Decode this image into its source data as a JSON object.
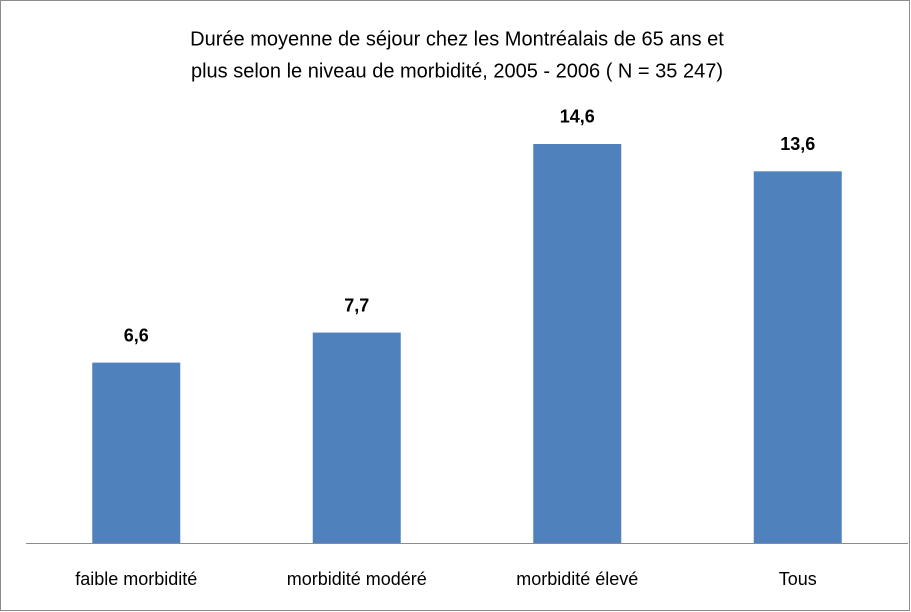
{
  "chart_data": {
    "type": "bar",
    "title": [
      "Durée moyenne de séjour chez les Montréalais de 65 ans et",
      "plus selon le niveau de morbidité, 2005 - 2006 ( N = 35 247)"
    ],
    "categories": [
      "faible morbidité",
      "morbidité modéré",
      "morbidité élevé",
      "Tous"
    ],
    "values": [
      6.6,
      7.7,
      14.6,
      13.6
    ],
    "value_labels": [
      "6,6",
      "7,7",
      "14,6",
      "13,6"
    ],
    "color": "#4f81bd"
  }
}
